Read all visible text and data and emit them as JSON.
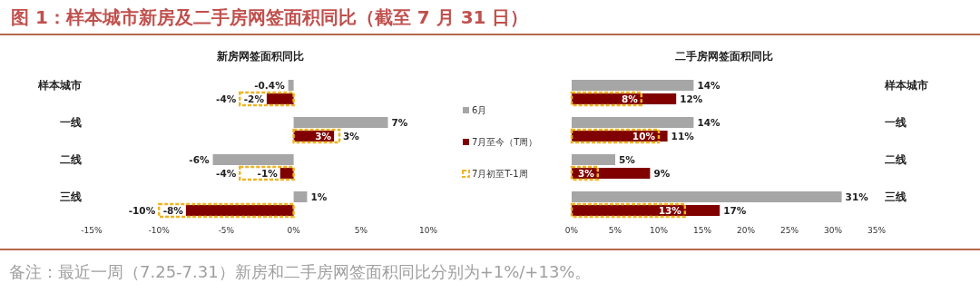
{
  "chart_data": [
    {
      "type": "bar",
      "orientation": "horizontal",
      "title": "新房网签面积同比",
      "annotations": [
        "图 1：样本城市新房及二手房网签面积同比（截至 7 月 31 日）"
      ],
      "categories": [
        "样本城市",
        "一线",
        "二线",
        "三线"
      ],
      "xlim": [
        -15,
        10
      ],
      "xticks": [
        {
          "value": -15,
          "label": "-15%"
        },
        {
          "value": -10,
          "label": "-10%"
        },
        {
          "value": -5,
          "label": "-5%"
        },
        {
          "value": 0,
          "label": "0%"
        },
        {
          "value": 5,
          "label": "5%"
        },
        {
          "value": 10,
          "label": "10%"
        }
      ],
      "legend": "right",
      "series": [
        {
          "name": "6月",
          "color": "#a6a6a6",
          "values": [
            -0.4,
            7,
            -6,
            1
          ],
          "value_labels": [
            "-0.4%",
            "7%",
            "-6%",
            "1%"
          ]
        },
        {
          "name": "7月至今（T周）",
          "color": "#800000",
          "values": [
            -2,
            3,
            -1,
            -8
          ],
          "value_labels": [
            "-2%",
            "3%",
            "-1%",
            "-8%"
          ]
        },
        {
          "name": "7月初至T-1周",
          "color": "#f0b323",
          "line_style": "dashed",
          "values": [
            -4,
            3.4,
            -4,
            -10
          ],
          "value_labels": [
            "-4%",
            "3%",
            "-4%",
            "-10%"
          ]
        }
      ]
    },
    {
      "type": "bar",
      "orientation": "horizontal",
      "title": "二手房网签面积同比",
      "annotations": [
        "备注：最近一周（7.25-7.31）新房和二手房网签面积同比分别为+1%/+13%。"
      ],
      "categories": [
        "样本城市",
        "一线",
        "二线",
        "三线"
      ],
      "xlim": [
        0,
        35
      ],
      "xticks": [
        {
          "value": 0,
          "label": "0%"
        },
        {
          "value": 5,
          "label": "5%"
        },
        {
          "value": 10,
          "label": "10%"
        },
        {
          "value": 15,
          "label": "15%"
        },
        {
          "value": 20,
          "label": "20%"
        },
        {
          "value": 25,
          "label": "25%"
        },
        {
          "value": 30,
          "label": "30%"
        },
        {
          "value": 35,
          "label": "35%"
        }
      ],
      "series": [
        {
          "color": "#a6a6a6",
          "values": [
            14,
            14,
            5,
            31
          ],
          "value_labels": [
            "14%",
            "14%",
            "5%",
            "31%"
          ]
        },
        {
          "color": "#800000",
          "values": [
            12,
            11,
            9,
            17
          ],
          "value_labels": [
            "12%",
            "11%",
            "9%",
            "17%"
          ]
        },
        {
          "color": "#f0b323",
          "line_style": "dashed",
          "values": [
            8,
            10,
            3,
            13
          ],
          "value_labels": [
            "8%",
            "10%",
            "3%",
            "13%"
          ]
        }
      ]
    }
  ]
}
